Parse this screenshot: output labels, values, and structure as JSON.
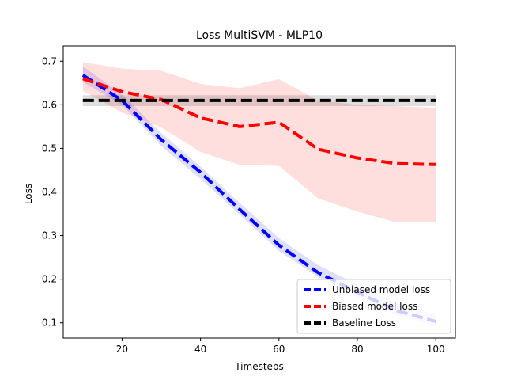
{
  "chart_data": {
    "type": "line",
    "title": "Loss MultiSVM - MLP10",
    "xlabel": "Timesteps",
    "ylabel": "Loss",
    "xlim": [
      5,
      105
    ],
    "ylim": [
      0.065,
      0.735
    ],
    "xticks": [
      20,
      40,
      60,
      80,
      100
    ],
    "yticks": [
      0.1,
      0.2,
      0.3,
      0.4,
      0.5,
      0.6,
      0.7
    ],
    "xtick_labels": [
      "20",
      "40",
      "60",
      "80",
      "100"
    ],
    "ytick_labels": [
      "0.1",
      "0.2",
      "0.3",
      "0.4",
      "0.5",
      "0.6",
      "0.7"
    ],
    "grid": false,
    "legend_position": "lower-right",
    "x": [
      10,
      20,
      30,
      40,
      50,
      60,
      70,
      80,
      90,
      100
    ],
    "series": [
      {
        "name": "Unbiased model loss",
        "color": "#0000ff",
        "band_color": "#0000ff",
        "values": [
          0.668,
          0.61,
          0.52,
          0.445,
          0.36,
          0.278,
          0.215,
          0.17,
          0.128,
          0.103
        ],
        "lower": [
          0.652,
          0.6,
          0.505,
          0.43,
          0.348,
          0.265,
          0.205,
          0.16,
          0.118,
          0.093
        ],
        "upper": [
          0.688,
          0.624,
          0.535,
          0.458,
          0.375,
          0.294,
          0.232,
          0.188,
          0.145,
          0.118
        ]
      },
      {
        "name": "Biased model loss",
        "color": "#ff0000",
        "band_color": "#ff0000",
        "values": [
          0.66,
          0.63,
          0.612,
          0.57,
          0.55,
          0.56,
          0.498,
          0.478,
          0.465,
          0.463
        ],
        "lower": [
          0.632,
          0.582,
          0.548,
          0.492,
          0.462,
          0.46,
          0.385,
          0.355,
          0.33,
          0.332
        ],
        "upper": [
          0.698,
          0.683,
          0.678,
          0.648,
          0.638,
          0.659,
          0.61,
          0.6,
          0.597,
          0.593
        ]
      },
      {
        "name": "Baseline Loss",
        "color": "#000000",
        "band_color": "#000000",
        "values": [
          0.61,
          0.61,
          0.61,
          0.61,
          0.61,
          0.61,
          0.61,
          0.61,
          0.61,
          0.61
        ],
        "lower": [
          0.597,
          0.597,
          0.597,
          0.597,
          0.597,
          0.597,
          0.597,
          0.597,
          0.597,
          0.597
        ],
        "upper": [
          0.622,
          0.622,
          0.622,
          0.622,
          0.622,
          0.622,
          0.622,
          0.622,
          0.622,
          0.622
        ]
      }
    ]
  }
}
